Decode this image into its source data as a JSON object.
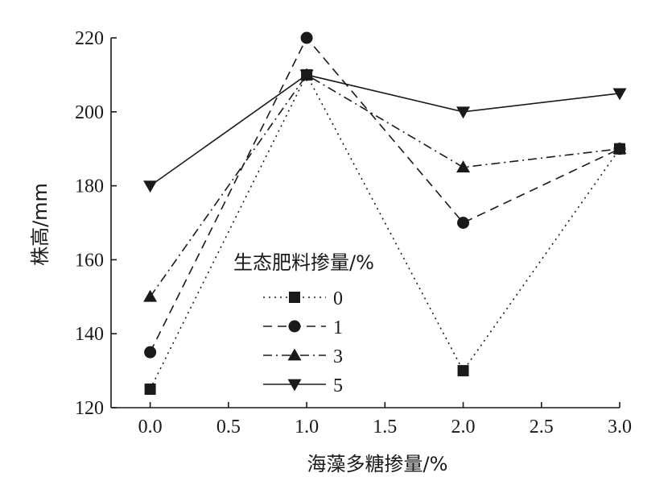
{
  "chart_data": {
    "type": "line",
    "xlabel": "海藻多糖掺量/%",
    "ylabel": "株高/mm",
    "x": [
      0.0,
      1.0,
      2.0,
      3.0
    ],
    "xlim": [
      -0.25,
      3.0
    ],
    "ylim": [
      120,
      220
    ],
    "xticks": [
      "0.0",
      "0.5",
      "1.0",
      "1.5",
      "2.0",
      "2.5",
      "3.0"
    ],
    "yticks": [
      "120",
      "140",
      "160",
      "180",
      "200",
      "220"
    ],
    "grid": false,
    "legend": {
      "title": "生态肥料掺量/%",
      "placement": "center-left"
    },
    "series": [
      {
        "name": "0",
        "values": [
          125,
          210,
          130,
          190
        ],
        "marker": "square",
        "dash": "dotted"
      },
      {
        "name": "1",
        "values": [
          135,
          220,
          170,
          190
        ],
        "marker": "circle",
        "dash": "dashed"
      },
      {
        "name": "3",
        "values": [
          150,
          210,
          185,
          190
        ],
        "marker": "triangle-up",
        "dash": "dash-dot"
      },
      {
        "name": "5",
        "values": [
          180,
          210,
          200,
          205
        ],
        "marker": "triangle-down",
        "dash": "solid"
      }
    ]
  }
}
